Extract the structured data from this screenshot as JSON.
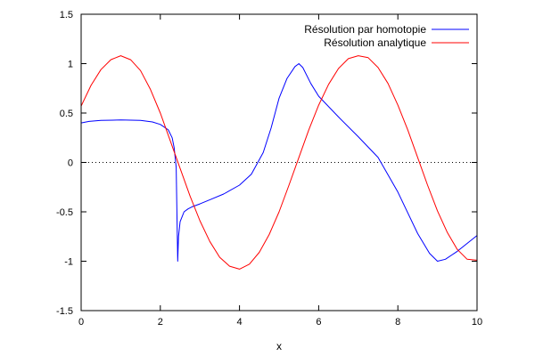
{
  "chart_data": {
    "type": "line",
    "title": "",
    "xlabel": "x",
    "ylabel": "",
    "xlim": [
      0,
      10
    ],
    "ylim": [
      -1.5,
      1.5
    ],
    "x_ticks": [
      0,
      2,
      4,
      6,
      8,
      10
    ],
    "x_tick_labels": [
      "0",
      "2",
      "4",
      "6",
      "8",
      "10"
    ],
    "y_ticks": [
      -1.5,
      -1,
      -0.5,
      0,
      0.5,
      1,
      1.5
    ],
    "y_tick_labels": [
      "-1.5",
      "-1",
      "-0.5",
      "0",
      "0.5",
      "1",
      "1.5"
    ],
    "grid": false,
    "legend_position": "top-right",
    "reference_line": {
      "y": 0,
      "style": "dotted",
      "color": "#000000"
    },
    "series": [
      {
        "name": "Résolution par homotopie",
        "color": "#0000ff",
        "x": [
          0,
          0.2,
          0.5,
          1.0,
          1.5,
          1.8,
          2.0,
          2.2,
          2.3,
          2.35,
          2.4,
          2.42,
          2.44,
          2.46,
          2.5,
          2.55,
          2.6,
          2.7,
          2.8,
          3.0,
          3.3,
          3.6,
          4.0,
          4.3,
          4.6,
          4.8,
          5.0,
          5.2,
          5.4,
          5.5,
          5.6,
          5.8,
          6.0,
          6.5,
          7.0,
          7.5,
          8.0,
          8.5,
          8.8,
          9.0,
          9.2,
          9.5,
          10.0
        ],
        "y": [
          0.4,
          0.415,
          0.425,
          0.43,
          0.425,
          0.41,
          0.385,
          0.33,
          0.25,
          0.15,
          -0.05,
          -0.5,
          -1.0,
          -0.75,
          -0.6,
          -0.55,
          -0.5,
          -0.47,
          -0.45,
          -0.42,
          -0.37,
          -0.32,
          -0.23,
          -0.12,
          0.1,
          0.35,
          0.65,
          0.85,
          0.97,
          1.0,
          0.96,
          0.8,
          0.67,
          0.46,
          0.26,
          0.05,
          -0.3,
          -0.72,
          -0.92,
          -1.0,
          -0.98,
          -0.9,
          -0.74
        ]
      },
      {
        "name": "Résolution analytique",
        "color": "#ff0000",
        "x": [
          0,
          0.25,
          0.5,
          0.75,
          1.0,
          1.25,
          1.5,
          1.75,
          2.0,
          2.25,
          2.5,
          2.75,
          3.0,
          3.25,
          3.5,
          3.75,
          4.0,
          4.25,
          4.5,
          4.75,
          5.0,
          5.25,
          5.5,
          5.75,
          6.0,
          6.25,
          6.5,
          6.75,
          7.0,
          7.25,
          7.5,
          7.75,
          8.0,
          8.25,
          8.5,
          8.75,
          9.0,
          9.25,
          9.5,
          9.75,
          10.0
        ],
        "y": [
          0.57,
          0.78,
          0.94,
          1.04,
          1.08,
          1.04,
          0.93,
          0.74,
          0.5,
          0.22,
          -0.06,
          -0.34,
          -0.59,
          -0.8,
          -0.96,
          -1.05,
          -1.08,
          -1.03,
          -0.91,
          -0.73,
          -0.5,
          -0.23,
          0.05,
          0.33,
          0.58,
          0.79,
          0.95,
          1.05,
          1.08,
          1.06,
          0.96,
          0.8,
          0.58,
          0.33,
          0.05,
          -0.23,
          -0.49,
          -0.71,
          -0.88,
          -0.98,
          -0.99
        ]
      }
    ]
  }
}
